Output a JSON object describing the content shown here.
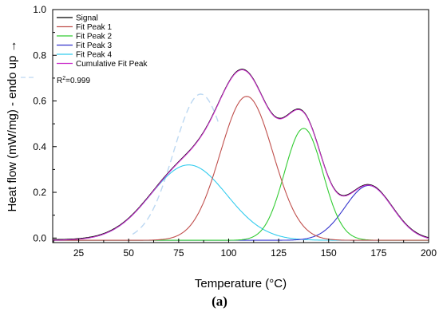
{
  "chart_data": {
    "type": "line",
    "xlabel": "Temperature (°C)",
    "ylabel": "Heat flow (mW/mg) - endo up →",
    "xlim": [
      12,
      200
    ],
    "ylim": [
      -0.02,
      1.0
    ],
    "x_ticks": [
      25,
      50,
      75,
      100,
      125,
      150,
      175,
      200
    ],
    "y_ticks": [
      0.0,
      0.2,
      0.4,
      0.6,
      0.8,
      1.0
    ],
    "x_tick_labels": [
      "25",
      "50",
      "75",
      "100",
      "125",
      "150",
      "175",
      "200"
    ],
    "y_tick_labels": [
      "0.0",
      "0.2",
      "0.4",
      "0.6",
      "0.8",
      "1.0"
    ],
    "legend_position": "top-left",
    "r_squared": {
      "prefix": "R",
      "sup": "2",
      "value": "=0.999"
    },
    "baseline": -0.01,
    "peaks": [
      {
        "name": "Fit Peak 1",
        "color": "#c0504d",
        "center": 109,
        "height": 0.63,
        "sigma": 13.2
      },
      {
        "name": "Fit Peak 2",
        "color": "#33cc33",
        "center": 137.5,
        "height": 0.49,
        "sigma": 9.6
      },
      {
        "name": "Fit Peak 3",
        "color": "#3333cc",
        "center": 170,
        "height": 0.24,
        "sigma": 11.8
      },
      {
        "name": "Fit Peak 4",
        "color": "#33ccee",
        "center": 80,
        "height": 0.33,
        "sigma": 19.0
      }
    ],
    "series": [
      {
        "name": "Signal",
        "color": "#000000",
        "kind": "sum"
      },
      {
        "name": "Fit Peak 1",
        "color": "#c0504d",
        "kind": "peak",
        "index": 0
      },
      {
        "name": "Fit Peak 2",
        "color": "#33cc33",
        "kind": "peak",
        "index": 1
      },
      {
        "name": "Fit Peak 3",
        "color": "#3333cc",
        "kind": "peak",
        "index": 2
      },
      {
        "name": "Fit Peak 4",
        "color": "#33ccee",
        "kind": "peak",
        "index": 3
      },
      {
        "name": "Cumulative Fit Peak",
        "color": "#cc33cc",
        "kind": "sum"
      }
    ],
    "ghost_color": "#bcd8f2"
  },
  "caption": "(a)"
}
